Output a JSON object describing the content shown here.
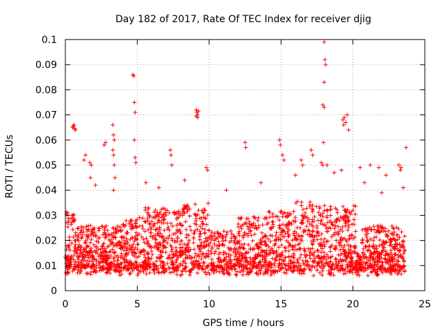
{
  "chart_data": {
    "type": "scatter",
    "title": "Day 182 of 2017, Rate Of TEC Index for receiver djig",
    "xlabel": "GPS time / hours",
    "ylabel": "ROTI / TECUs",
    "xlim": [
      0,
      25
    ],
    "ylim": [
      0,
      0.1
    ],
    "xticks": [
      0,
      5,
      10,
      15,
      20,
      25
    ],
    "xtick_labels": [
      "0",
      "5",
      "10",
      "15",
      "20",
      "25"
    ],
    "yticks": [
      0,
      0.01,
      0.02,
      0.03,
      0.04,
      0.05,
      0.06,
      0.07,
      0.08,
      0.09,
      0.1
    ],
    "ytick_labels": [
      "0",
      "0.01",
      "0.02",
      "0.03",
      "0.04",
      "0.05",
      "0.06",
      "0.07",
      "0.08",
      "0.09",
      "0.1"
    ],
    "grid": true,
    "marker": "+",
    "color": "#ff0000",
    "series": [
      {
        "name": "ROTI",
        "points": [
          [
            0.5,
            0.065
          ],
          [
            0.6,
            0.066
          ],
          [
            0.7,
            0.064
          ],
          [
            0.55,
            0.0655
          ],
          [
            0.65,
            0.0645
          ],
          [
            1.3,
            0.052
          ],
          [
            1.4,
            0.054
          ],
          [
            1.7,
            0.051
          ],
          [
            1.8,
            0.05
          ],
          [
            1.75,
            0.045
          ],
          [
            2.7,
            0.058
          ],
          [
            2.8,
            0.059
          ],
          [
            3.3,
            0.066
          ],
          [
            3.35,
            0.062
          ],
          [
            3.4,
            0.06
          ],
          [
            3.3,
            0.056
          ],
          [
            3.35,
            0.054
          ],
          [
            3.4,
            0.05
          ],
          [
            3.45,
            0.045
          ],
          [
            3.35,
            0.04
          ],
          [
            4.7,
            0.086
          ],
          [
            4.75,
            0.0855
          ],
          [
            4.8,
            0.075
          ],
          [
            4.85,
            0.071
          ],
          [
            4.8,
            0.06
          ],
          [
            4.85,
            0.053
          ],
          [
            4.9,
            0.051
          ],
          [
            7.3,
            0.056
          ],
          [
            7.35,
            0.054
          ],
          [
            7.4,
            0.05
          ],
          [
            9.1,
            0.072
          ],
          [
            9.15,
            0.071
          ],
          [
            9.2,
            0.07
          ],
          [
            9.25,
            0.0715
          ],
          [
            9.1,
            0.0695
          ],
          [
            9.2,
            0.069
          ],
          [
            9.8,
            0.049
          ],
          [
            9.9,
            0.048
          ],
          [
            12.5,
            0.059
          ],
          [
            12.55,
            0.057
          ],
          [
            14.9,
            0.06
          ],
          [
            14.95,
            0.058
          ],
          [
            15.1,
            0.054
          ],
          [
            15.2,
            0.052
          ],
          [
            16.4,
            0.052
          ],
          [
            16.5,
            0.05
          ],
          [
            17.1,
            0.056
          ],
          [
            17.2,
            0.054
          ],
          [
            17.8,
            0.051
          ],
          [
            17.9,
            0.05
          ],
          [
            18.0,
            0.099
          ],
          [
            18.05,
            0.092
          ],
          [
            18.1,
            0.09
          ],
          [
            18.0,
            0.083
          ],
          [
            17.9,
            0.074
          ],
          [
            18.0,
            0.073
          ],
          [
            17.95,
            0.059
          ],
          [
            18.2,
            0.05
          ],
          [
            19.3,
            0.068
          ],
          [
            19.35,
            0.066
          ],
          [
            19.4,
            0.069
          ],
          [
            19.5,
            0.067
          ],
          [
            19.6,
            0.07
          ],
          [
            19.7,
            0.064
          ],
          [
            19.2,
            0.048
          ],
          [
            20.5,
            0.049
          ],
          [
            21.2,
            0.05
          ],
          [
            21.8,
            0.049
          ],
          [
            22.3,
            0.046
          ],
          [
            23.2,
            0.05
          ],
          [
            23.3,
            0.048
          ],
          [
            23.35,
            0.049
          ],
          [
            23.7,
            0.057
          ],
          [
            2.1,
            0.042
          ],
          [
            5.6,
            0.043
          ],
          [
            6.5,
            0.041
          ],
          [
            8.3,
            0.044
          ],
          [
            11.2,
            0.04
          ],
          [
            13.6,
            0.043
          ],
          [
            16.0,
            0.046
          ],
          [
            18.7,
            0.047
          ],
          [
            20.8,
            0.043
          ],
          [
            22.0,
            0.039
          ],
          [
            23.5,
            0.041
          ]
        ]
      }
    ]
  }
}
